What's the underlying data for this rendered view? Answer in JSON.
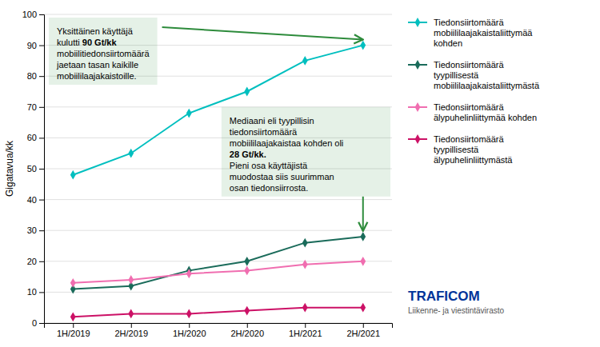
{
  "chart_data": {
    "type": "line",
    "categories": [
      "1H/2019",
      "2H/2019",
      "1H/2020",
      "2H/2020",
      "1H/2021",
      "2H/2021"
    ],
    "series": [
      {
        "name": "Tiedonsiirtomäärä\nmobiililaajakaistaliittymää\nkohden",
        "color": "#00BFBF",
        "marker": "diamond",
        "values": [
          48,
          55,
          68,
          75,
          85,
          90
        ]
      },
      {
        "name": "Tiedonsiirtomäärä\ntyypillisestä\nmobiililaajakaistaliittymästä",
        "color": "#1a6b5a",
        "marker": "diamond",
        "values": [
          11,
          12,
          17,
          20,
          26,
          28
        ]
      },
      {
        "name": "Tiedonsiirtomäärä\nälypuhelinliittymää kohden",
        "color": "#F06EB0",
        "marker": "diamond",
        "values": [
          13,
          14,
          16,
          17,
          19,
          20
        ]
      },
      {
        "name": "Tiedonsiirtomäärä\ntyypillisestä\nälypuhelinliittymästä",
        "color": "#CC1166",
        "marker": "diamond",
        "values": [
          2,
          3,
          3,
          4,
          5,
          5
        ]
      }
    ],
    "ylabel": "Gigatavua/kk",
    "ylim": [
      0,
      100
    ],
    "yticks": [
      0,
      10,
      20,
      30,
      40,
      50,
      60,
      70,
      80,
      90,
      100
    ],
    "grid": true,
    "legend": "right",
    "annotations": [
      {
        "text": "Yksittäinen käyttäjä\nkulutti 90 Gt/kk\nmobiilitiedonsiirtomäärä\njaetaan tasan kaikille\nmobiililaajakaistoille.",
        "bold": "90 Gt/kk",
        "x": "2H/2021",
        "y": 90,
        "color": "#2d8b3b"
      },
      {
        "text": "Mediaani eli tyypillisin\ntiedonsiirtomäärä\nmobiililaajakaistaa kohden oli\n28 Gt/kk.\nPieni osa käyttäjistä\nmuodostaa siis suurimman\nosan tiedonsiirrosta.",
        "bold": "28 Gt/kk.",
        "x": "2H/2021",
        "y": 28,
        "color": "#2d8b3b"
      },
      {
        "text": "TRAFICOM",
        "color": "#003399"
      },
      {
        "text": "Liikenne- ja viestintävirasto",
        "color": "#555555"
      }
    ]
  }
}
